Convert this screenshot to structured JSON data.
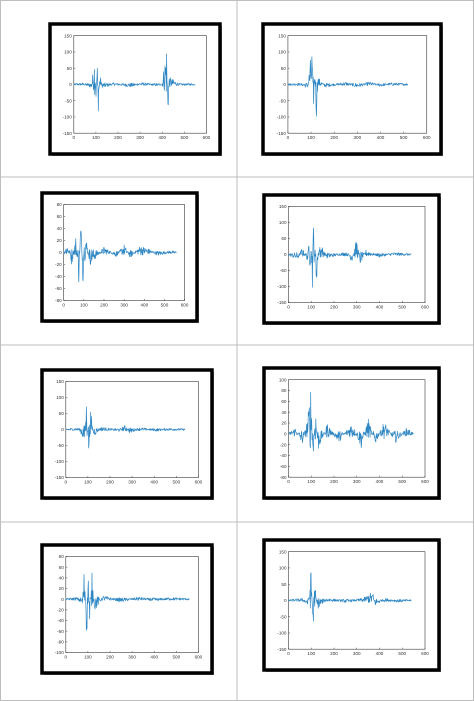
{
  "chart_data": [
    {
      "type": "line",
      "series": [
        {
          "points": [
            [
              0,
              0
            ],
            [
              40,
              2
            ],
            [
              80,
              -8
            ],
            [
              88,
              45
            ],
            [
              96,
              100
            ],
            [
              100,
              -60
            ],
            [
              106,
              80
            ],
            [
              110,
              -95
            ],
            [
              118,
              30
            ],
            [
              130,
              -10
            ],
            [
              180,
              3
            ],
            [
              260,
              -6
            ],
            [
              300,
              4
            ],
            [
              380,
              -3
            ],
            [
              400,
              3
            ],
            [
              420,
              120
            ],
            [
              425,
              -120
            ],
            [
              432,
              20
            ],
            [
              480,
              -2
            ],
            [
              520,
              1
            ],
            [
              550,
              0
            ]
          ]
        }
      ],
      "xlim": [
        0,
        600
      ],
      "ylim": [
        -150,
        150
      ],
      "xticks": [
        0,
        100,
        200,
        300,
        400,
        500,
        600
      ],
      "yticks": [
        -150,
        -100,
        -50,
        0,
        50,
        100,
        150
      ]
    },
    {
      "type": "line",
      "series": [
        {
          "points": [
            [
              0,
              0
            ],
            [
              50,
              2
            ],
            [
              85,
              -10
            ],
            [
              95,
              60
            ],
            [
              105,
              115
            ],
            [
              110,
              -95
            ],
            [
              116,
              80
            ],
            [
              122,
              -120
            ],
            [
              130,
              20
            ],
            [
              160,
              -6
            ],
            [
              250,
              5
            ],
            [
              300,
              -8
            ],
            [
              350,
              6
            ],
            [
              400,
              -4
            ],
            [
              450,
              3
            ],
            [
              520,
              0
            ]
          ]
        }
      ],
      "xlim": [
        0,
        600
      ],
      "ylim": [
        -150,
        150
      ],
      "xticks": [
        0,
        100,
        200,
        300,
        400,
        500,
        600
      ],
      "yticks": [
        -150,
        -100,
        -50,
        0,
        50,
        100,
        150
      ]
    },
    {
      "type": "line",
      "series": [
        {
          "points": [
            [
              0,
              0
            ],
            [
              20,
              15
            ],
            [
              40,
              -20
            ],
            [
              60,
              25
            ],
            [
              75,
              -50
            ],
            [
              85,
              70
            ],
            [
              95,
              -55
            ],
            [
              105,
              40
            ],
            [
              130,
              -20
            ],
            [
              200,
              8
            ],
            [
              260,
              -6
            ],
            [
              300,
              12
            ],
            [
              330,
              -8
            ],
            [
              380,
              10
            ],
            [
              420,
              5
            ],
            [
              470,
              -4
            ],
            [
              530,
              2
            ],
            [
              560,
              0
            ]
          ]
        }
      ],
      "xlim": [
        0,
        600
      ],
      "ylim": [
        -80,
        80
      ],
      "xticks": [
        0,
        100,
        200,
        300,
        400,
        500,
        600
      ],
      "yticks": [
        -80,
        -60,
        -40,
        -20,
        0,
        20,
        40,
        60,
        80
      ]
    },
    {
      "type": "line",
      "series": [
        {
          "points": [
            [
              0,
              0
            ],
            [
              40,
              -15
            ],
            [
              60,
              20
            ],
            [
              85,
              -20
            ],
            [
              95,
              140
            ],
            [
              105,
              -100
            ],
            [
              110,
              130
            ],
            [
              120,
              -120
            ],
            [
              135,
              40
            ],
            [
              170,
              -10
            ],
            [
              250,
              6
            ],
            [
              280,
              -20
            ],
            [
              300,
              50
            ],
            [
              315,
              -30
            ],
            [
              340,
              12
            ],
            [
              400,
              -6
            ],
            [
              460,
              4
            ],
            [
              540,
              0
            ]
          ]
        }
      ],
      "xlim": [
        0,
        600
      ],
      "ylim": [
        -150,
        150
      ],
      "xticks": [
        0,
        100,
        200,
        300,
        400,
        500,
        600
      ],
      "yticks": [
        -150,
        -100,
        -50,
        0,
        50,
        100,
        150
      ]
    },
    {
      "type": "line",
      "series": [
        {
          "points": [
            [
              0,
              0
            ],
            [
              60,
              3
            ],
            [
              85,
              -40
            ],
            [
              95,
              120
            ],
            [
              105,
              -110
            ],
            [
              112,
              60
            ],
            [
              125,
              -20
            ],
            [
              160,
              6
            ],
            [
              240,
              -4
            ],
            [
              270,
              12
            ],
            [
              290,
              -10
            ],
            [
              330,
              4
            ],
            [
              410,
              -3
            ],
            [
              460,
              2
            ],
            [
              540,
              0
            ]
          ]
        }
      ],
      "xlim": [
        0,
        600
      ],
      "ylim": [
        -150,
        150
      ],
      "xticks": [
        0,
        100,
        200,
        300,
        400,
        500,
        600
      ],
      "yticks": [
        -150,
        -100,
        -50,
        0,
        50,
        100,
        150
      ]
    },
    {
      "type": "line",
      "series": [
        {
          "points": [
            [
              0,
              0
            ],
            [
              30,
              10
            ],
            [
              60,
              -20
            ],
            [
              85,
              30
            ],
            [
              100,
              100
            ],
            [
              108,
              -60
            ],
            [
              118,
              55
            ],
            [
              130,
              -30
            ],
            [
              170,
              18
            ],
            [
              220,
              -15
            ],
            [
              280,
              20
            ],
            [
              320,
              -25
            ],
            [
              350,
              28
            ],
            [
              380,
              -20
            ],
            [
              420,
              22
            ],
            [
              470,
              -15
            ],
            [
              520,
              10
            ],
            [
              550,
              0
            ]
          ]
        }
      ],
      "xlim": [
        0,
        600
      ],
      "ylim": [
        -80,
        100
      ],
      "xticks": [
        0,
        100,
        200,
        300,
        400,
        500,
        600
      ],
      "yticks": [
        -80,
        -60,
        -40,
        -20,
        0,
        20,
        40,
        60,
        80,
        100
      ]
    },
    {
      "type": "line",
      "series": [
        {
          "points": [
            [
              0,
              0
            ],
            [
              50,
              2
            ],
            [
              75,
              -10
            ],
            [
              85,
              70
            ],
            [
              95,
              -90
            ],
            [
              100,
              80
            ],
            [
              108,
              -75
            ],
            [
              118,
              50
            ],
            [
              130,
              -20
            ],
            [
              170,
              5
            ],
            [
              250,
              -4
            ],
            [
              330,
              3
            ],
            [
              400,
              -3
            ],
            [
              470,
              2
            ],
            [
              560,
              0
            ]
          ]
        }
      ],
      "xlim": [
        0,
        600
      ],
      "ylim": [
        -100,
        80
      ],
      "xticks": [
        0,
        100,
        200,
        300,
        400,
        500,
        600
      ],
      "yticks": [
        -100,
        -80,
        -60,
        -40,
        -20,
        0,
        20,
        40,
        60,
        80
      ]
    },
    {
      "type": "line",
      "series": [
        {
          "points": [
            [
              0,
              0
            ],
            [
              60,
              4
            ],
            [
              85,
              -15
            ],
            [
              100,
              100
            ],
            [
              108,
              -130
            ],
            [
              115,
              60
            ],
            [
              125,
              -25
            ],
            [
              170,
              6
            ],
            [
              250,
              -4
            ],
            [
              330,
              5
            ],
            [
              370,
              25
            ],
            [
              380,
              -15
            ],
            [
              420,
              5
            ],
            [
              480,
              -3
            ],
            [
              540,
              0
            ]
          ]
        }
      ],
      "xlim": [
        0,
        600
      ],
      "ylim": [
        -150,
        150
      ],
      "xticks": [
        0,
        100,
        200,
        300,
        400,
        500,
        600
      ],
      "yticks": [
        -150,
        -100,
        -50,
        0,
        50,
        100,
        150
      ]
    }
  ]
}
